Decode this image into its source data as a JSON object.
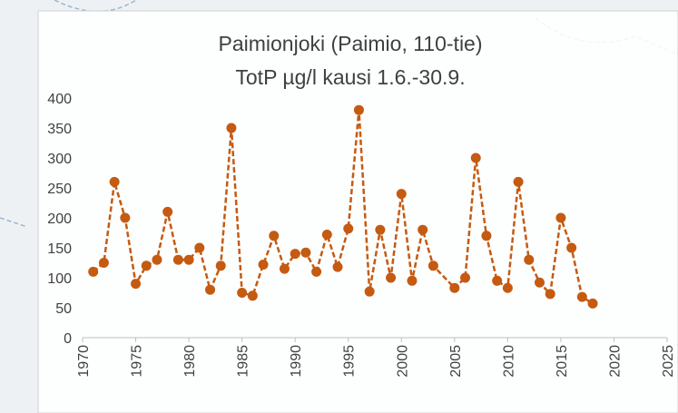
{
  "chart_data": {
    "type": "line",
    "title": "Paimionjoki (Paimio, 110-tie)",
    "subtitle": "TotP µg/l kausi 1.6.-30.9.",
    "x": [
      1971,
      1972,
      1973,
      1974,
      1975,
      1976,
      1977,
      1978,
      1979,
      1980,
      1981,
      1982,
      1983,
      1984,
      1985,
      1986,
      1987,
      1988,
      1989,
      1990,
      1991,
      1992,
      1993,
      1994,
      1995,
      1996,
      1997,
      1998,
      1999,
      2000,
      2001,
      2002,
      2003,
      2005,
      2006,
      2007,
      2008,
      2009,
      2010,
      2011,
      2012,
      2013,
      2014,
      2015,
      2016,
      2017,
      2018
    ],
    "series": [
      {
        "name": "TotP",
        "color": "#c55a11",
        "values": [
          110,
          125,
          260,
          200,
          90,
          120,
          130,
          210,
          130,
          130,
          150,
          80,
          120,
          350,
          75,
          70,
          122,
          170,
          115,
          140,
          142,
          110,
          172,
          118,
          182,
          380,
          77,
          180,
          100,
          240,
          95,
          180,
          120,
          83,
          100,
          300,
          170,
          95,
          83,
          260,
          130,
          92,
          73,
          200,
          150,
          68,
          57
        ]
      }
    ],
    "xlim": [
      1970,
      2025
    ],
    "xticks": [
      1970,
      1975,
      1980,
      1985,
      1990,
      1995,
      2000,
      2005,
      2010,
      2015,
      2020,
      2025
    ],
    "ylim": [
      0,
      400
    ],
    "yticks": [
      0,
      50,
      100,
      150,
      200,
      250,
      300,
      350,
      400
    ]
  }
}
